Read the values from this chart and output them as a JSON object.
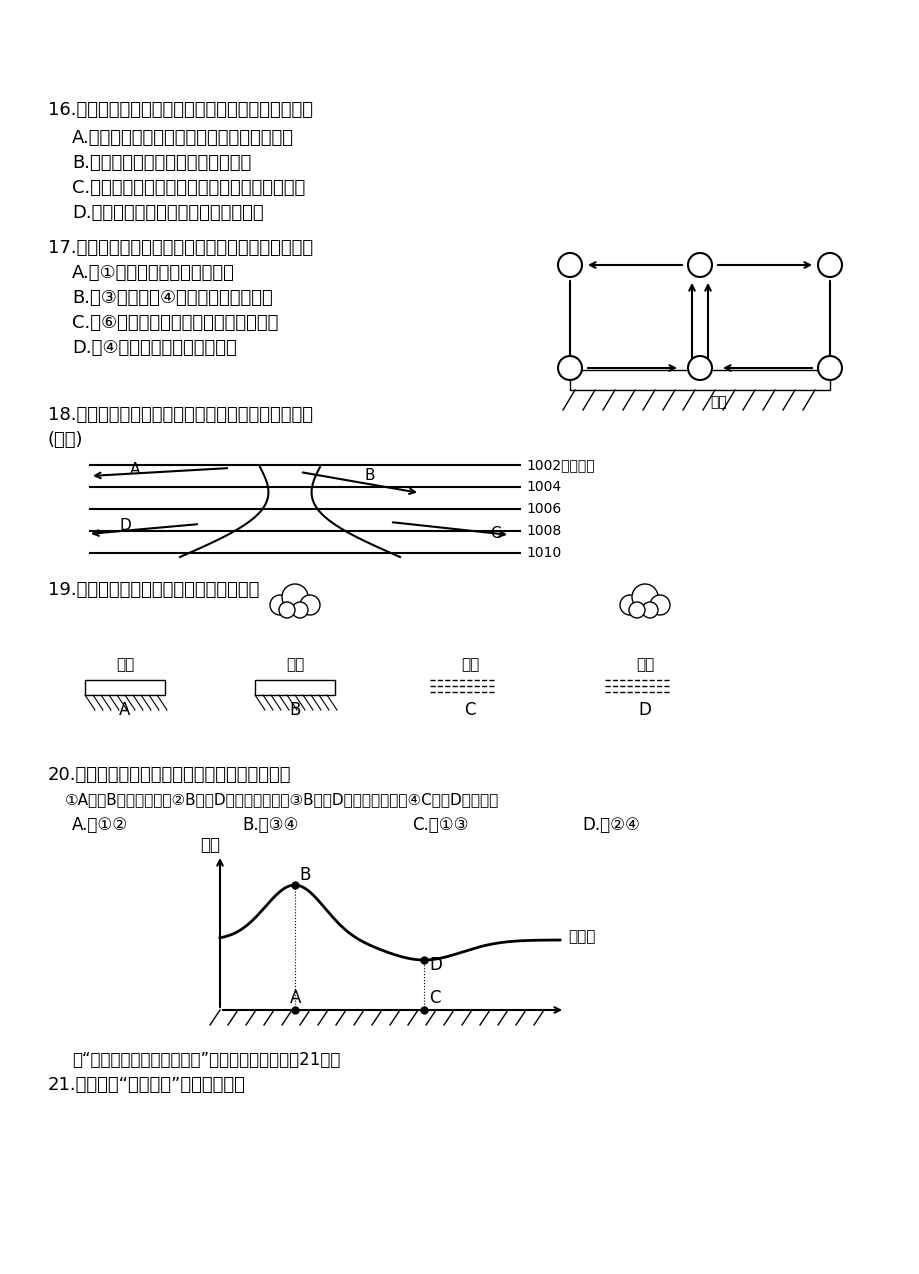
{
  "bg_color": "#ffffff",
  "text_color": "#000000",
  "q16": {
    "main": "16.　关于大气受热过程的说法正确的是：（　　　）",
    "A": "A.　地球大气最重要的能量来源是太阳辐射能",
    "B": "B.　大气的物理过程不伴随能量转换",
    "C": "C.　太阳辐射能在传播过程中，少部分到达地面",
    "D": "D.　大气增温的热量直接来自太阳辐射"
  },
  "q17": {
    "main": "17.　关于右图中空气运动的说法正确的是：（　　）",
    "A": "A.　①处空气上升是因为气压高",
    "B": "B.　③处气压较④处高，所以空气下沉",
    "C": "C.　⑥处气温高、气压低，空气下沉补充",
    "D": "D.　④处气温低，空气收缩下沉"
  },
  "q18": {
    "main": "18.下图为南半球等压线分布示意图，风向正确的是：",
    "paren": "(　　)"
  },
  "q19": {
    "main": "19.下图中，昼夜温差最小的是：（　　）"
  },
  "q20": {
    "main": "20.下图中各点之间的气压关系正确的是（　　）",
    "opt1": "①A点比B点气压低　　②B点比D点气压高　　　③B点和D点气压相等　　④C点比D点气压高",
    "A": "A.　①②",
    "B": "B.　③④",
    "C": "C.　①③",
    "D": "D.　②④"
  },
  "q21_pre": "读“全球近地面气压带和风带”局部示意图，完成第21题。",
  "q21": "21.　图中的“丙气压带”是指（　　）"
}
